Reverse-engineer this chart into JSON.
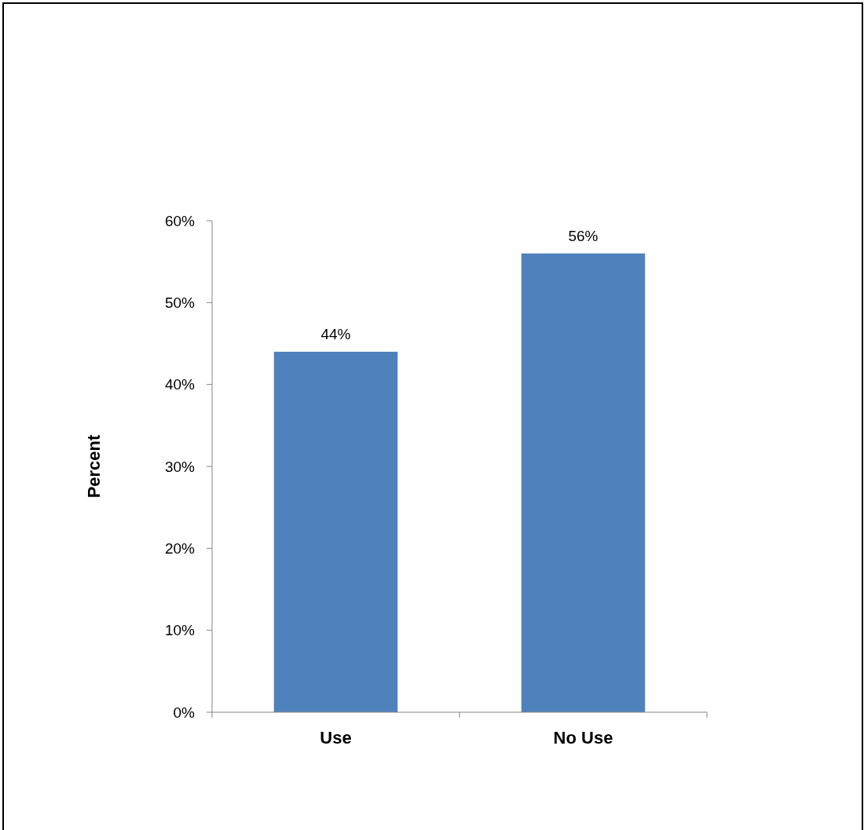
{
  "chart_data": {
    "type": "bar",
    "ylabel": "Percent",
    "categories": [
      "Use",
      "No Use"
    ],
    "values": [
      44,
      56
    ],
    "color": "#4f81bd",
    "value_labels": [
      "44%",
      "56%"
    ],
    "ylim": [
      0,
      60
    ],
    "yticks": [
      {
        "value": 0,
        "label": "0%"
      },
      {
        "value": 10,
        "label": "10%"
      },
      {
        "value": 20,
        "label": "20%"
      },
      {
        "value": 30,
        "label": "30%"
      },
      {
        "value": 40,
        "label": "40%"
      },
      {
        "value": 50,
        "label": "50%"
      },
      {
        "value": 60,
        "label": "60%"
      }
    ]
  }
}
